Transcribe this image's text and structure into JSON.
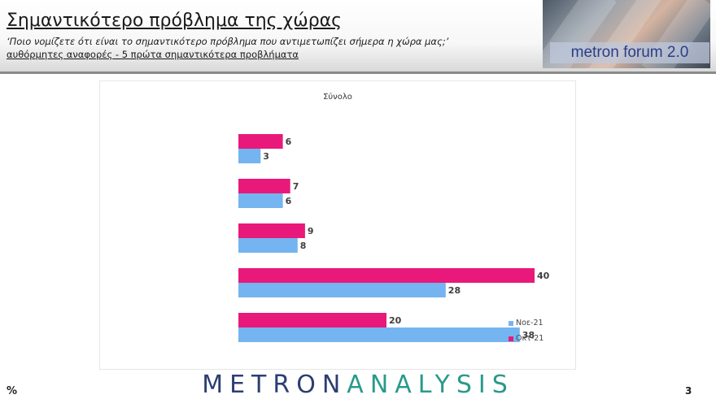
{
  "header": {
    "title": "Σημαντικότερο πρόβλημα της χώρας",
    "question": "‘Ποιο νομίζετε ότι  είναι το σημαντικότερο πρόβλημα που αντιμετωπίζει σήμερα η χώρα μας;’",
    "note": "αυθόρμητες αναφορές - 5 πρώτα σημαντικότερα προβλήματα",
    "banner": "metron forum 2.0"
  },
  "chart_data": {
    "type": "bar",
    "orientation": "horizontal",
    "title": "Σύνολο",
    "categories": [
      "",
      "",
      "",
      "",
      ""
    ],
    "series": [
      {
        "name": "Οκτ-21",
        "color": "#e8197a",
        "values": [
          6,
          7,
          9,
          40,
          20
        ]
      },
      {
        "name": "Νοε-21",
        "color": "#74b4f0",
        "values": [
          3,
          6,
          8,
          28,
          38
        ]
      }
    ],
    "xlim": [
      0,
      45
    ],
    "grid": false,
    "legend": "bottom-right"
  },
  "footer": {
    "logo_part1": "METRON",
    "logo_part2": "ANALYSIS",
    "unit": "%",
    "page_number": "3"
  }
}
